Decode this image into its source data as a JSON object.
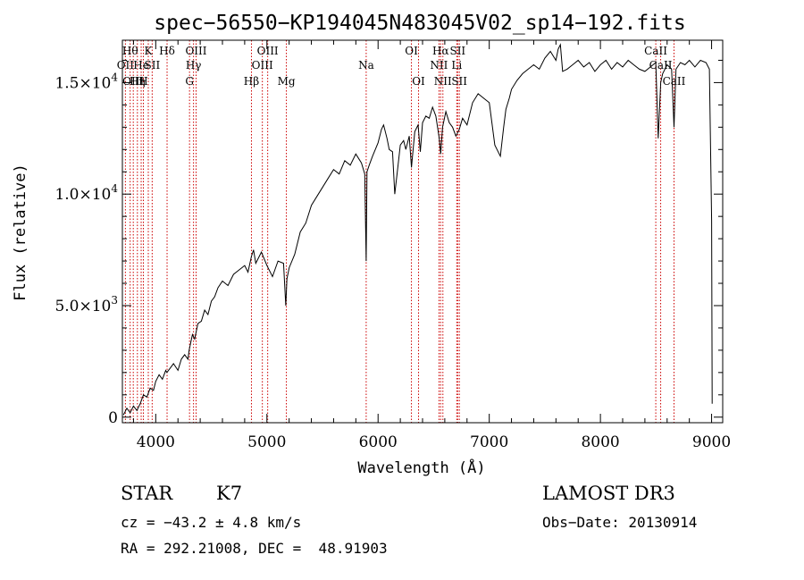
{
  "chart_data": {
    "type": "line",
    "title": "spec−56550−KP194045N483045V02_sp14−192.fits",
    "xlabel": "Wavelength (Å)",
    "ylabel": "Flux (relative)",
    "xlim": [
      3700,
      9100
    ],
    "ylim": [
      -250,
      16900
    ],
    "xticks": [
      {
        "value": 4000,
        "label": "4000"
      },
      {
        "value": 5000,
        "label": "5000"
      },
      {
        "value": 6000,
        "label": "6000"
      },
      {
        "value": 7000,
        "label": "7000"
      },
      {
        "value": 8000,
        "label": "8000"
      },
      {
        "value": 9000,
        "label": "9000"
      }
    ],
    "yticks": [
      {
        "value": 0,
        "base": "0",
        "exp": ""
      },
      {
        "value": 5000,
        "base": "5.0×10",
        "exp": "3"
      },
      {
        "value": 10000,
        "base": "1.0×10",
        "exp": "4"
      },
      {
        "value": 15000,
        "base": "1.5×10",
        "exp": "4"
      }
    ],
    "series": [
      {
        "name": "spectrum",
        "x": [
          3710,
          3740,
          3770,
          3800,
          3830,
          3860,
          3890,
          3920,
          3950,
          3980,
          4000,
          4030,
          4060,
          4090,
          4100,
          4130,
          4160,
          4200,
          4230,
          4260,
          4290,
          4300,
          4330,
          4350,
          4380,
          4410,
          4440,
          4470,
          4500,
          4530,
          4560,
          4600,
          4650,
          4700,
          4750,
          4800,
          4830,
          4860,
          4880,
          4900,
          4950,
          5000,
          5050,
          5100,
          5150,
          5170,
          5180,
          5200,
          5250,
          5300,
          5350,
          5400,
          5450,
          5500,
          5550,
          5600,
          5650,
          5700,
          5750,
          5800,
          5850,
          5880,
          5893,
          5900,
          5920,
          5950,
          6000,
          6030,
          6050,
          6080,
          6100,
          6130,
          6150,
          6180,
          6200,
          6230,
          6250,
          6280,
          6300,
          6330,
          6360,
          6380,
          6400,
          6430,
          6460,
          6490,
          6520,
          6550,
          6563,
          6580,
          6610,
          6640,
          6670,
          6700,
          6730,
          6760,
          6800,
          6850,
          6900,
          6950,
          7000,
          7050,
          7100,
          7130,
          7150,
          7180,
          7200,
          7250,
          7300,
          7350,
          7400,
          7450,
          7500,
          7550,
          7600,
          7620,
          7640,
          7660,
          7700,
          7750,
          7800,
          7850,
          7900,
          7950,
          8000,
          8050,
          8100,
          8150,
          8200,
          8250,
          8300,
          8350,
          8400,
          8450,
          8498,
          8520,
          8542,
          8560,
          8600,
          8640,
          8662,
          8680,
          8720,
          8760,
          8800,
          8850,
          8900,
          8950,
          8980,
          9000,
          9005
        ],
        "values": [
          100,
          400,
          200,
          500,
          300,
          600,
          1000,
          900,
          1300,
          1200,
          1600,
          1900,
          1700,
          2100,
          2000,
          2200,
          2400,
          2100,
          2600,
          2800,
          2600,
          3000,
          3700,
          3500,
          4200,
          4300,
          4800,
          4600,
          5200,
          5400,
          5800,
          6100,
          5900,
          6400,
          6600,
          6800,
          6500,
          7200,
          7500,
          6900,
          7400,
          6800,
          6300,
          7000,
          6900,
          5000,
          6200,
          6700,
          7300,
          8300,
          8700,
          9500,
          9900,
          10300,
          10700,
          11100,
          10900,
          11500,
          11300,
          11800,
          11400,
          10900,
          7000,
          11000,
          11300,
          11700,
          12300,
          12900,
          13100,
          12500,
          12000,
          11900,
          10000,
          11300,
          12200,
          12400,
          12000,
          12600,
          11200,
          12800,
          13100,
          11900,
          13200,
          13500,
          13400,
          13900,
          13500,
          12500,
          11800,
          13000,
          13700,
          13200,
          13000,
          12600,
          12900,
          13400,
          13100,
          14100,
          14500,
          14300,
          14100,
          12200,
          11700,
          13000,
          13800,
          14300,
          14700,
          15100,
          15400,
          15600,
          15800,
          15600,
          16100,
          16400,
          16000,
          16500,
          16700,
          15500,
          15600,
          15800,
          16000,
          15700,
          15900,
          15500,
          15800,
          16000,
          15600,
          15900,
          15700,
          16000,
          15800,
          15600,
          15500,
          15700,
          15900,
          12500,
          15000,
          15400,
          15800,
          15600,
          13000,
          15600,
          15900,
          15800,
          16000,
          15700,
          16000,
          15900,
          15600,
          8800,
          600
        ]
      }
    ],
    "lines": [
      {
        "wave": 3727,
        "label": "OII",
        "row": 2
      },
      {
        "wave": 3770,
        "label": "Hθ",
        "row": 1
      },
      {
        "wave": 3798,
        "label": "OIII",
        "row": 3
      },
      {
        "wave": 3835,
        "label": "Hη",
        "row": 3
      },
      {
        "wave": 3869,
        "label": "He",
        "row": 2
      },
      {
        "wave": 3889,
        "label": "H",
        "row": 3
      },
      {
        "wave": 3933,
        "label": "K",
        "row": 1
      },
      {
        "wave": 3968,
        "label": "SII",
        "row": 2
      },
      {
        "wave": 4102,
        "label": "Hδ",
        "row": 1
      },
      {
        "wave": 4304,
        "label": "G",
        "row": 3
      },
      {
        "wave": 4340,
        "label": "Hγ",
        "row": 2
      },
      {
        "wave": 4363,
        "label": "OIII",
        "row": 1
      },
      {
        "wave": 4861,
        "label": "Hβ",
        "row": 3
      },
      {
        "wave": 4959,
        "label": "OIII",
        "row": 2
      },
      {
        "wave": 5007,
        "label": "OIII",
        "row": 1
      },
      {
        "wave": 5175,
        "label": "Mg",
        "row": 3
      },
      {
        "wave": 5893,
        "label": "Na",
        "row": 2
      },
      {
        "wave": 6300,
        "label": "OI",
        "row": 1
      },
      {
        "wave": 6364,
        "label": "OI",
        "row": 3
      },
      {
        "wave": 6548,
        "label": "NII",
        "row": 2
      },
      {
        "wave": 6563,
        "label": "Hα",
        "row": 1
      },
      {
        "wave": 6583,
        "label": "NII",
        "row": 3
      },
      {
        "wave": 6708,
        "label": "Li",
        "row": 2
      },
      {
        "wave": 6716,
        "label": "SII",
        "row": 1
      },
      {
        "wave": 6731,
        "label": "SII",
        "row": 3
      },
      {
        "wave": 8498,
        "label": "CaII",
        "row": 1
      },
      {
        "wave": 8542,
        "label": "CaII",
        "row": 2
      },
      {
        "wave": 8662,
        "label": "CaII",
        "row": 3
      }
    ]
  },
  "info": {
    "object_class": "STAR",
    "subclass": "K7",
    "redshift": "cz = −43.2 ± 4.8 km/s",
    "coords": "RA = 292.21008, DEC =  48.91903",
    "survey": "LAMOST DR3",
    "obs_date": "Obs−Date: 20130914"
  }
}
